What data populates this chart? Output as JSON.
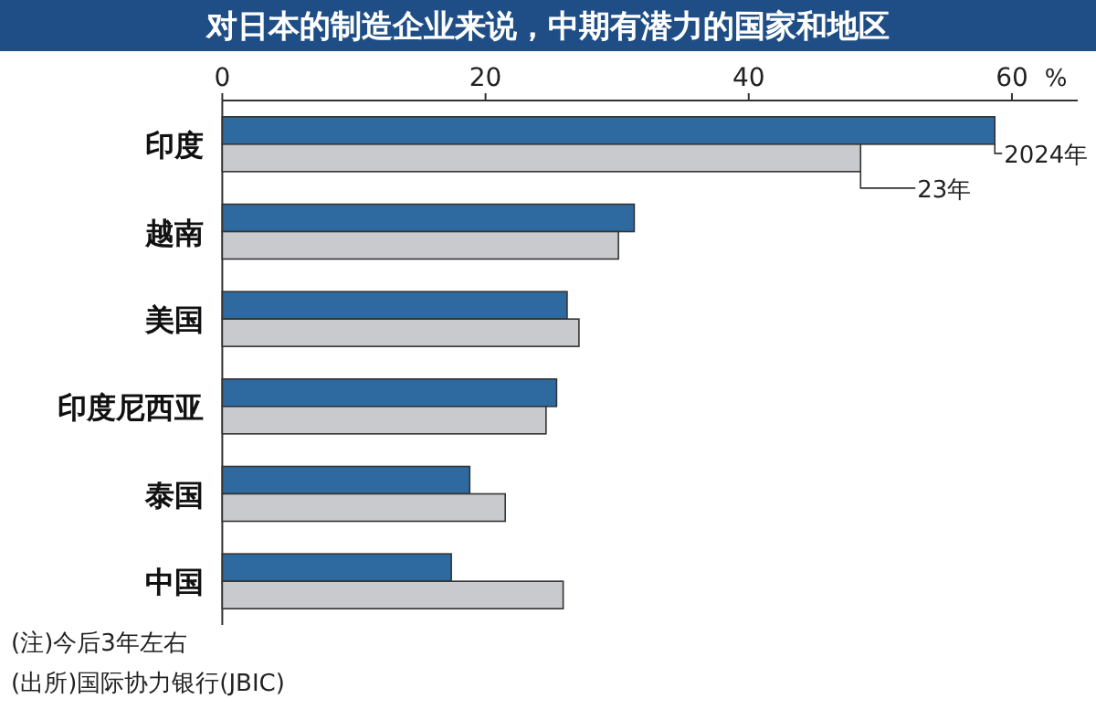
{
  "chart_data": {
    "type": "bar",
    "orientation": "horizontal",
    "title": "对日本的制造企业来说，中期有潜力的国家和地区",
    "xlabel": "%",
    "categories": [
      "印度",
      "越南",
      "美国",
      "印度尼西亚",
      "泰国",
      "中国"
    ],
    "series": [
      {
        "name": "2024年",
        "color": "#2e6aa0",
        "values": [
          58.7,
          31.3,
          26.2,
          25.4,
          18.8,
          17.4
        ]
      },
      {
        "name": "23年",
        "color": "#c8cacd",
        "values": [
          48.5,
          30.1,
          27.1,
          24.6,
          21.5,
          25.9
        ]
      }
    ],
    "legend": "right",
    "xlim": [
      0,
      65
    ],
    "xticks": [
      0,
      20,
      40,
      60
    ],
    "annotations": [
      "(注)今后3年左右",
      "(出所)国际协力银行(JBIC)"
    ]
  }
}
